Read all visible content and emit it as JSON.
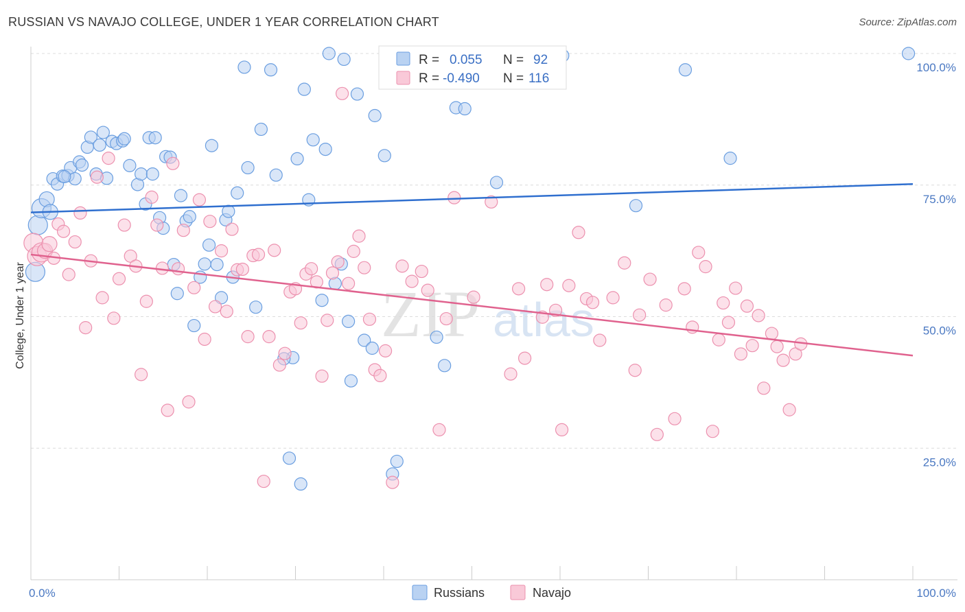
{
  "header": {
    "title": "RUSSIAN VS NAVAJO COLLEGE, UNDER 1 YEAR CORRELATION CHART",
    "source": "Source: ZipAtlas.com"
  },
  "colors": {
    "russians": "#6a9ee0",
    "russians_fill": "#b9d2f2",
    "russians_line": "#2f6fcf",
    "navajo": "#ec90ae",
    "navajo_fill": "#f9c9d8",
    "navajo_line": "#e0628e",
    "axis_label": "#4a78c2"
  },
  "legend": {
    "r_label": "R =",
    "n_label": "N =",
    "russians_r": "0.055",
    "russians_n": "92",
    "navajo_r": "-0.490",
    "navajo_n": "116"
  },
  "watermark": {
    "zip": "ZIP",
    "atlas": "atlas"
  },
  "chart_data": {
    "type": "scatter",
    "title": "RUSSIAN VS NAVAJO COLLEGE, UNDER 1 YEAR CORRELATION CHART",
    "xlabel": "",
    "ylabel": "College, Under 1 year",
    "xlim": [
      0,
      100
    ],
    "ylim": [
      0,
      100
    ],
    "x_tick_labels": [
      "0.0%",
      "100.0%"
    ],
    "y_tick_labels": [
      "25.0%",
      "50.0%",
      "75.0%",
      "100.0%"
    ],
    "y_ticks": [
      25,
      50,
      75,
      100
    ],
    "grid": true,
    "legend_position": "top-center",
    "series": [
      {
        "name": "Russians",
        "r": 0.055,
        "n": 92,
        "trend": {
          "x": [
            0,
            100
          ],
          "y": [
            69.8,
            75.2
          ]
        },
        "points": [
          [
            0.5,
            58.5
          ],
          [
            0.8,
            67.4
          ],
          [
            1.2,
            70.6
          ],
          [
            1.8,
            72.3
          ],
          [
            2.2,
            69.9
          ],
          [
            2.5,
            76.2
          ],
          [
            3.0,
            75.2
          ],
          [
            3.6,
            76.7
          ],
          [
            4.2,
            76.8
          ],
          [
            4.5,
            78.3
          ],
          [
            5.0,
            76.2
          ],
          [
            5.5,
            79.4
          ],
          [
            5.8,
            78.8
          ],
          [
            6.4,
            82.2
          ],
          [
            6.8,
            84.1
          ],
          [
            7.4,
            77.1
          ],
          [
            7.8,
            82.6
          ],
          [
            8.2,
            85.0
          ],
          [
            8.6,
            76.3
          ],
          [
            9.2,
            83.3
          ],
          [
            9.7,
            82.9
          ],
          [
            10.4,
            83.4
          ],
          [
            11.2,
            78.7
          ],
          [
            12.1,
            75.1
          ],
          [
            12.5,
            77.1
          ],
          [
            13.0,
            71.4
          ],
          [
            13.4,
            84.0
          ],
          [
            14.1,
            84.0
          ],
          [
            14.6,
            68.8
          ],
          [
            15.0,
            66.8
          ],
          [
            15.3,
            80.4
          ],
          [
            15.8,
            80.3
          ],
          [
            16.2,
            59.9
          ],
          [
            16.6,
            54.4
          ],
          [
            17.0,
            73.0
          ],
          [
            17.6,
            68.2
          ],
          [
            18.0,
            69.0
          ],
          [
            18.5,
            48.3
          ],
          [
            19.2,
            57.5
          ],
          [
            19.7,
            60.0
          ],
          [
            20.2,
            63.6
          ],
          [
            20.5,
            82.5
          ],
          [
            21.1,
            59.9
          ],
          [
            21.6,
            53.6
          ],
          [
            22.1,
            68.4
          ],
          [
            22.4,
            70.0
          ],
          [
            22.9,
            57.5
          ],
          [
            23.4,
            73.5
          ],
          [
            24.2,
            97.4
          ],
          [
            24.6,
            78.3
          ],
          [
            25.5,
            51.8
          ],
          [
            26.1,
            85.6
          ],
          [
            27.2,
            96.9
          ],
          [
            27.8,
            76.9
          ],
          [
            29.3,
            23.1
          ],
          [
            29.7,
            42.2
          ],
          [
            30.2,
            80.0
          ],
          [
            30.6,
            18.2
          ],
          [
            31.0,
            93.2
          ],
          [
            31.5,
            72.2
          ],
          [
            32.0,
            83.6
          ],
          [
            33.0,
            53.1
          ],
          [
            33.4,
            81.8
          ],
          [
            34.5,
            56.3
          ],
          [
            35.2,
            60.0
          ],
          [
            35.5,
            98.9
          ],
          [
            36.0,
            49.1
          ],
          [
            36.3,
            37.8
          ],
          [
            37.0,
            92.3
          ],
          [
            37.8,
            45.5
          ],
          [
            38.7,
            44.0
          ],
          [
            39.0,
            88.2
          ],
          [
            40.1,
            80.6
          ],
          [
            41.0,
            20.1
          ],
          [
            41.5,
            22.5
          ],
          [
            46.0,
            46.1
          ],
          [
            46.9,
            40.7
          ],
          [
            48.2,
            89.7
          ],
          [
            49.2,
            89.5
          ],
          [
            52.8,
            75.5
          ],
          [
            56.0,
            99.9
          ],
          [
            60.3,
            99.6
          ],
          [
            68.6,
            71.1
          ],
          [
            74.2,
            96.9
          ],
          [
            79.3,
            80.1
          ],
          [
            99.5,
            100.0
          ],
          [
            3.8,
            76.6
          ],
          [
            10.6,
            83.8
          ],
          [
            13.8,
            77.1
          ],
          [
            28.7,
            42.0
          ],
          [
            33.8,
            100.0
          ],
          [
            57.1,
            99.8
          ]
        ]
      },
      {
        "name": "Navajo",
        "r": -0.49,
        "n": 116,
        "trend": {
          "x": [
            0,
            100
          ],
          "y": [
            61.8,
            42.6
          ]
        },
        "points": [
          [
            0.3,
            64.0
          ],
          [
            0.7,
            61.5
          ],
          [
            1.2,
            62.2
          ],
          [
            1.6,
            62.5
          ],
          [
            2.1,
            63.8
          ],
          [
            2.6,
            61.1
          ],
          [
            3.1,
            67.6
          ],
          [
            3.7,
            66.2
          ],
          [
            4.3,
            58.0
          ],
          [
            5.0,
            64.2
          ],
          [
            5.6,
            69.7
          ],
          [
            6.2,
            47.9
          ],
          [
            6.8,
            60.6
          ],
          [
            7.5,
            76.5
          ],
          [
            8.1,
            53.6
          ],
          [
            8.8,
            80.1
          ],
          [
            9.4,
            49.7
          ],
          [
            10.0,
            57.2
          ],
          [
            10.6,
            67.4
          ],
          [
            11.3,
            61.5
          ],
          [
            11.9,
            59.6
          ],
          [
            12.5,
            39.0
          ],
          [
            13.1,
            52.9
          ],
          [
            13.7,
            72.7
          ],
          [
            14.3,
            67.4
          ],
          [
            14.9,
            59.2
          ],
          [
            15.5,
            32.2
          ],
          [
            16.1,
            79.1
          ],
          [
            16.7,
            59.1
          ],
          [
            17.3,
            66.4
          ],
          [
            17.9,
            33.8
          ],
          [
            18.5,
            55.5
          ],
          [
            19.1,
            72.2
          ],
          [
            19.7,
            45.7
          ],
          [
            20.3,
            68.1
          ],
          [
            20.9,
            51.9
          ],
          [
            21.6,
            62.5
          ],
          [
            22.2,
            51.0
          ],
          [
            22.8,
            66.6
          ],
          [
            23.4,
            58.9
          ],
          [
            24.0,
            59.0
          ],
          [
            24.6,
            46.2
          ],
          [
            25.2,
            61.6
          ],
          [
            25.8,
            61.8
          ],
          [
            26.4,
            18.7
          ],
          [
            27.0,
            46.2
          ],
          [
            27.6,
            62.6
          ],
          [
            28.2,
            40.8
          ],
          [
            28.8,
            43.0
          ],
          [
            29.4,
            54.7
          ],
          [
            30.0,
            55.3
          ],
          [
            30.6,
            48.8
          ],
          [
            31.2,
            58.1
          ],
          [
            31.8,
            59.1
          ],
          [
            32.4,
            56.6
          ],
          [
            33.0,
            38.7
          ],
          [
            33.6,
            49.3
          ],
          [
            34.2,
            58.3
          ],
          [
            34.8,
            60.4
          ],
          [
            35.3,
            92.4
          ],
          [
            36.0,
            56.3
          ],
          [
            36.6,
            62.4
          ],
          [
            37.2,
            65.3
          ],
          [
            37.8,
            59.3
          ],
          [
            38.4,
            49.5
          ],
          [
            39.0,
            39.9
          ],
          [
            39.6,
            38.8
          ],
          [
            40.2,
            43.5
          ],
          [
            41.0,
            18.5
          ],
          [
            42.1,
            59.6
          ],
          [
            43.2,
            56.7
          ],
          [
            44.3,
            58.6
          ],
          [
            45.0,
            55.0
          ],
          [
            46.3,
            28.5
          ],
          [
            47.1,
            49.6
          ],
          [
            48.0,
            72.6
          ],
          [
            50.2,
            53.7
          ],
          [
            52.2,
            71.8
          ],
          [
            54.4,
            39.1
          ],
          [
            55.3,
            55.3
          ],
          [
            56.0,
            42.1
          ],
          [
            58.0,
            49.9
          ],
          [
            58.5,
            56.1
          ],
          [
            59.5,
            51.2
          ],
          [
            60.2,
            28.5
          ],
          [
            61.0,
            55.9
          ],
          [
            62.1,
            66.0
          ],
          [
            63.0,
            53.4
          ],
          [
            63.7,
            52.7
          ],
          [
            64.5,
            45.5
          ],
          [
            66.0,
            53.6
          ],
          [
            67.3,
            60.2
          ],
          [
            68.5,
            39.8
          ],
          [
            69.0,
            50.3
          ],
          [
            70.2,
            57.1
          ],
          [
            71.0,
            27.6
          ],
          [
            72.0,
            52.2
          ],
          [
            73.0,
            30.6
          ],
          [
            74.1,
            55.3
          ],
          [
            75.0,
            48.0
          ],
          [
            75.7,
            62.2
          ],
          [
            76.5,
            59.5
          ],
          [
            77.3,
            28.2
          ],
          [
            78.0,
            45.6
          ],
          [
            78.5,
            52.6
          ],
          [
            79.1,
            48.9
          ],
          [
            79.9,
            55.4
          ],
          [
            80.5,
            42.9
          ],
          [
            81.2,
            52.0
          ],
          [
            81.8,
            44.5
          ],
          [
            82.5,
            50.2
          ],
          [
            83.1,
            36.4
          ],
          [
            84.0,
            46.8
          ],
          [
            84.6,
            44.3
          ],
          [
            85.3,
            41.7
          ],
          [
            86.0,
            32.3
          ],
          [
            86.7,
            42.9
          ],
          [
            87.3,
            44.8
          ]
        ]
      }
    ]
  },
  "bottom_legend": {
    "russians_label": "Russians",
    "navajo_label": "Navajo"
  }
}
